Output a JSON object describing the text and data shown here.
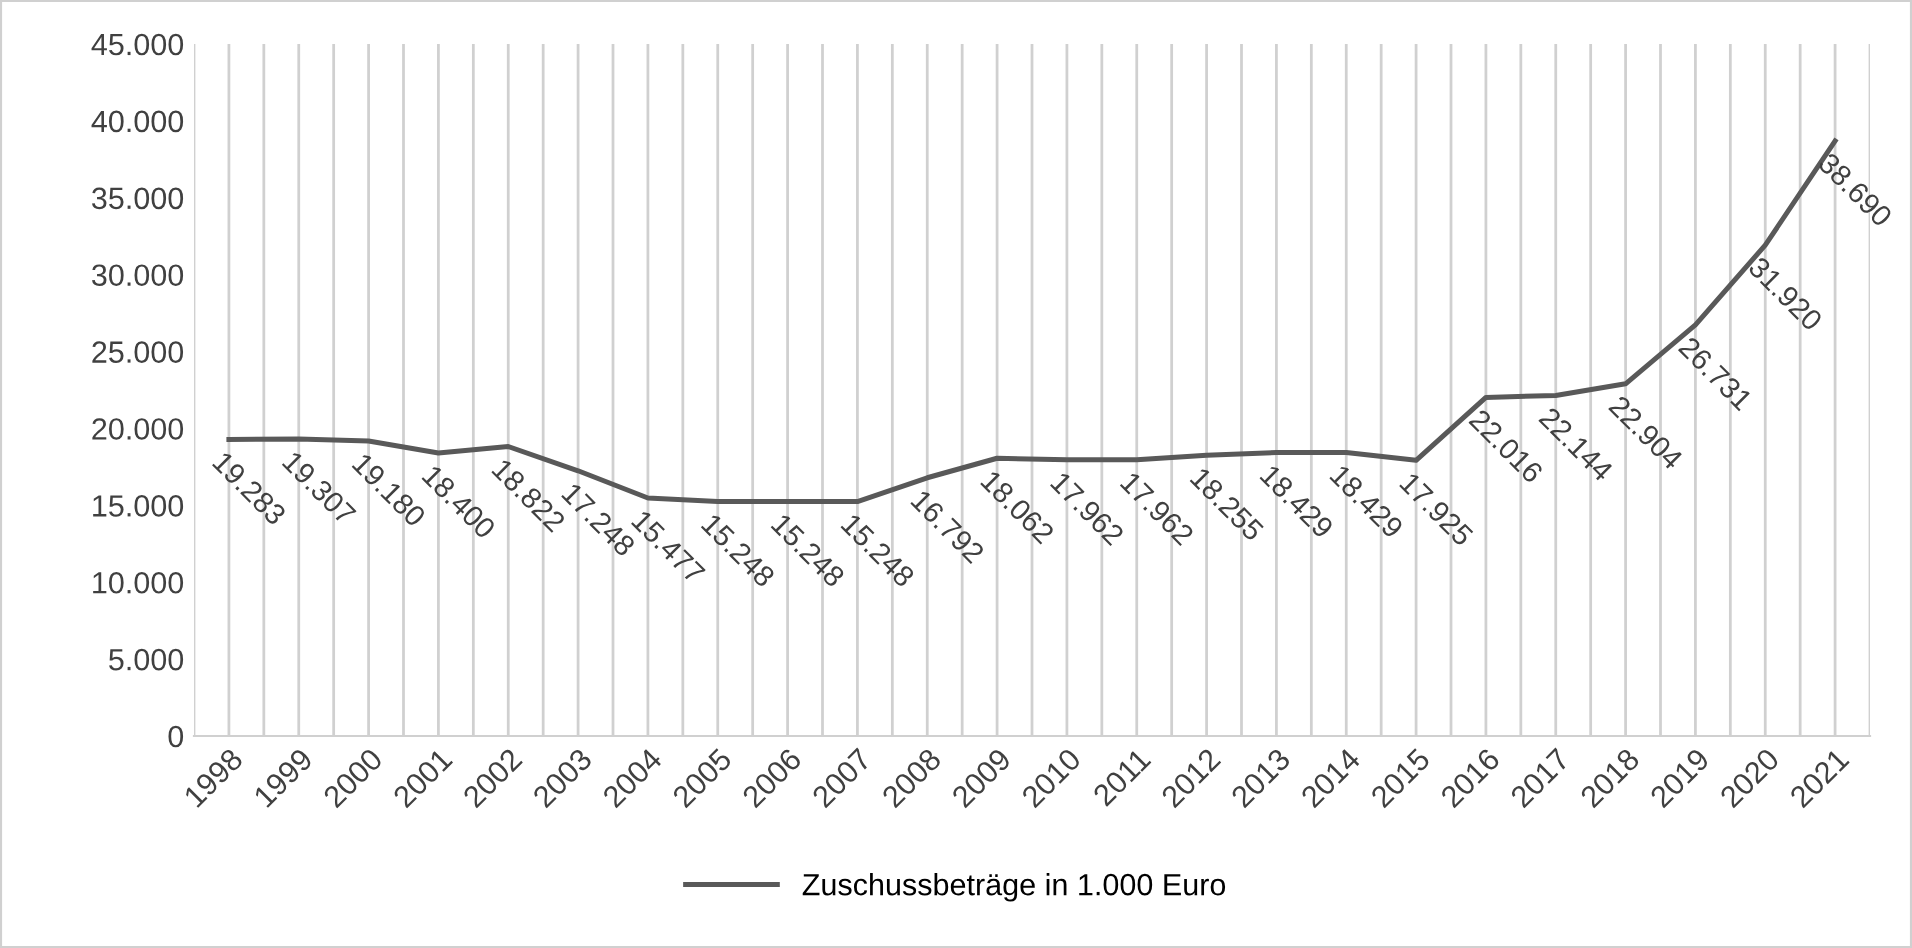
{
  "chart_data": {
    "type": "line",
    "categories": [
      "1998",
      "1999",
      "2000",
      "2001",
      "2002",
      "2003",
      "2004",
      "2005",
      "2006",
      "2007",
      "2008",
      "2009",
      "2010",
      "2011",
      "2012",
      "2013",
      "2014",
      "2015",
      "2016",
      "2017",
      "2018",
      "2019",
      "2020",
      "2021"
    ],
    "series": [
      {
        "name": "Zuschussbeträge in 1.000 Euro",
        "color": "#595959",
        "values": [
          19283,
          19307,
          19180,
          18400,
          18822,
          17248,
          15477,
          15248,
          15248,
          15248,
          16792,
          18062,
          17962,
          17962,
          18255,
          18429,
          18429,
          17925,
          22016,
          22144,
          22904,
          26731,
          31920,
          38690
        ],
        "value_labels": [
          "19.283",
          "19.307",
          "19.180",
          "18.400",
          "18.822",
          "17.248",
          "15.477",
          "15.248",
          "15.248",
          "15.248",
          "16.792",
          "18.062",
          "17.962",
          "17.962",
          "18.255",
          "18.429",
          "18.429",
          "17.925",
          "22.016",
          "22.144",
          "22.904",
          "26.731",
          "31.920",
          "38.690"
        ]
      }
    ],
    "ylim": [
      0,
      45000
    ],
    "yticks": [
      {
        "value": 0,
        "label": "0"
      },
      {
        "value": 5000,
        "label": "5.000"
      },
      {
        "value": 10000,
        "label": "10.000"
      },
      {
        "value": 15000,
        "label": "15.000"
      },
      {
        "value": 20000,
        "label": "20.000"
      },
      {
        "value": 25000,
        "label": "25.000"
      },
      {
        "value": 30000,
        "label": "30.000"
      },
      {
        "value": 35000,
        "label": "35.000"
      },
      {
        "value": 40000,
        "label": "40.000"
      },
      {
        "value": 45000,
        "label": "45.000"
      }
    ],
    "grid": "x",
    "legend": "bottom",
    "marker": "none",
    "line_style": "solid"
  }
}
